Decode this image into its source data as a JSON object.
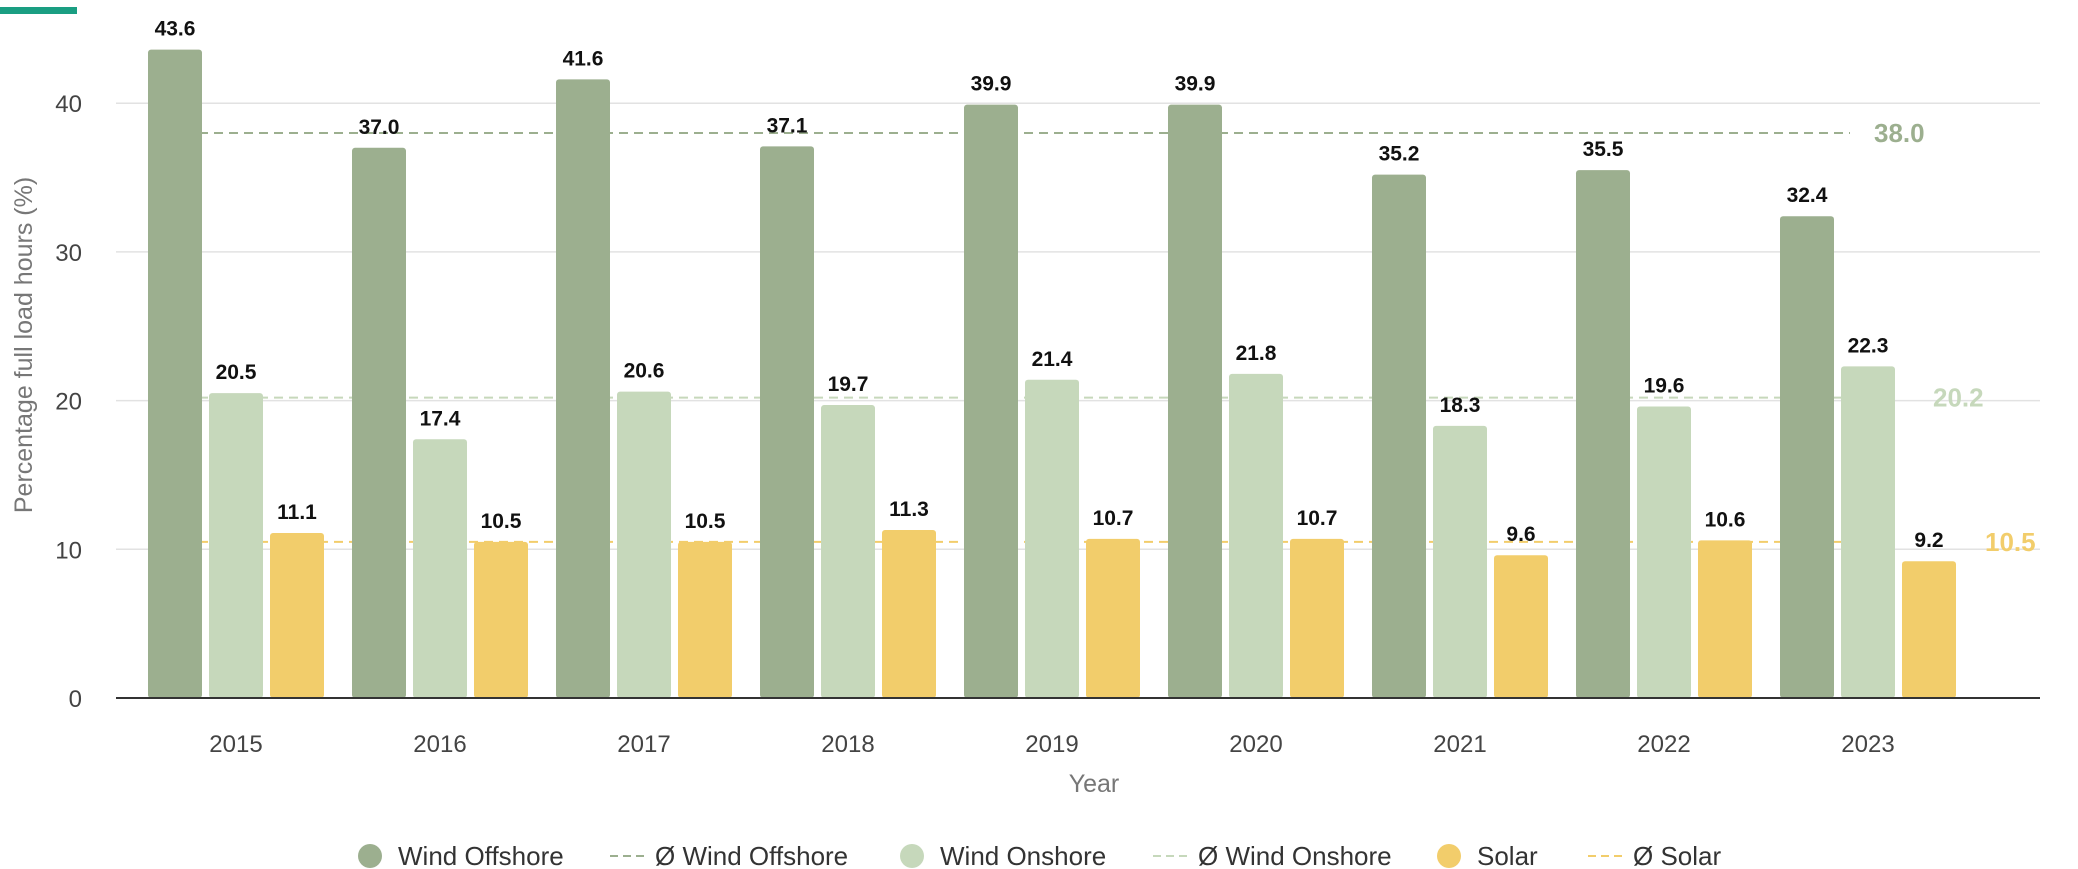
{
  "chart_data": {
    "type": "bar",
    "title": "",
    "xlabel": "Year",
    "ylabel": "Percentage full load hours (%)",
    "ylim": [
      0,
      45
    ],
    "yticks": [
      0,
      10,
      20,
      30,
      40
    ],
    "grid": true,
    "legend_position": "bottom",
    "categories": [
      "2015",
      "2016",
      "2017",
      "2018",
      "2019",
      "2020",
      "2021",
      "2022",
      "2023"
    ],
    "series": [
      {
        "name": "Wind Offshore",
        "color": "#9caf8f",
        "values": [
          43.6,
          37.0,
          41.6,
          37.1,
          39.9,
          39.9,
          35.2,
          35.5,
          32.4
        ]
      },
      {
        "name": "Wind Onshore",
        "color": "#c6d8bb",
        "values": [
          20.5,
          17.4,
          20.6,
          19.7,
          21.4,
          21.8,
          18.3,
          19.6,
          22.3
        ]
      },
      {
        "name": "Solar",
        "color": "#f2cd6b",
        "values": [
          11.1,
          10.5,
          10.5,
          11.3,
          10.7,
          10.7,
          9.6,
          10.6,
          9.2
        ]
      }
    ],
    "averages": [
      {
        "name": "Ø Wind Offshore",
        "value": 38.0,
        "label": "38.0",
        "color": "#9caf8f"
      },
      {
        "name": "Ø Wind Onshore",
        "value": 20.2,
        "label": "20.2",
        "color": "#c6d8bb"
      },
      {
        "name": "Ø Solar",
        "value": 10.5,
        "label": "10.5",
        "color": "#f2cd6b"
      }
    ],
    "legend": [
      {
        "label": "Wind Offshore",
        "kind": "dot",
        "color": "#9caf8f"
      },
      {
        "label": "Ø Wind Offshore",
        "kind": "dash",
        "color": "#9caf8f"
      },
      {
        "label": "Wind Onshore",
        "kind": "dot",
        "color": "#c6d8bb"
      },
      {
        "label": "Ø Wind Onshore",
        "kind": "dash",
        "color": "#c6d8bb"
      },
      {
        "label": "Solar",
        "kind": "dot",
        "color": "#f2cd6b"
      },
      {
        "label": "Ø Solar",
        "kind": "dash",
        "color": "#f2cd6b"
      }
    ],
    "accent_color": "#1a9e82"
  }
}
